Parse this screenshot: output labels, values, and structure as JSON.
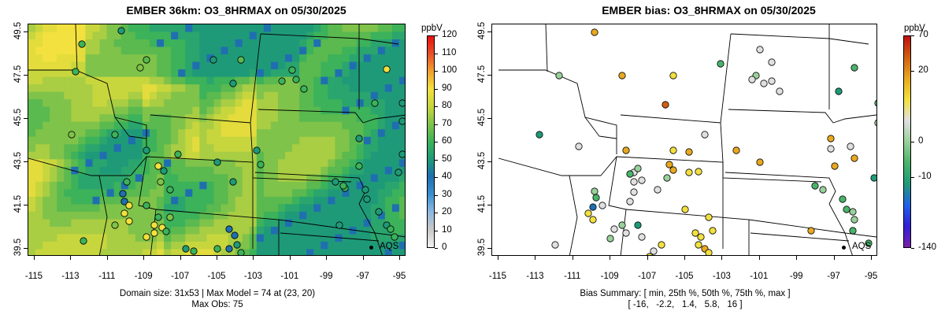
{
  "left_panel": {
    "title": "EMBER 36km: O3_8HRMAX on 05/30/2025",
    "x_ticks": [
      "-115",
      "-113",
      "-111",
      "-109",
      "-107",
      "-105",
      "-103",
      "-101",
      "-99",
      "-97",
      "-95"
    ],
    "y_ticks": [
      "39.5",
      "41.5",
      "43.5",
      "45.5",
      "47.5",
      "49.5"
    ],
    "colorbar_unit": "ppbV",
    "colorbar_ticks": [
      "0",
      "10",
      "20",
      "30",
      "40",
      "50",
      "60",
      "70",
      "80",
      "90",
      "100",
      "110",
      "120"
    ],
    "footer_line1": "Domain size: 31x53 | Max Model = 74 at (23, 20)",
    "footer_line2": "Max Obs: 75",
    "site_label": "AQS"
  },
  "right_panel": {
    "title": "EMBER bias: O3_8HRMAX on 05/30/2025",
    "x_ticks": [
      "-115",
      "-113",
      "-111",
      "-109",
      "-107",
      "-105",
      "-103",
      "-101",
      "-99",
      "-97",
      "-95"
    ],
    "y_ticks": [
      "39.5",
      "41.5",
      "43.5",
      "45.5",
      "47.5",
      "49.5"
    ],
    "colorbar_unit": "ppbV",
    "colorbar_ticks": [
      "70",
      "20",
      "0",
      "-10",
      "-140"
    ],
    "footer_line1": "Bias Summary: [ min, 25th %, 50th %, 75th %, max ]",
    "footer_line2": "[ -16,   -2.2,   1.4,   5.8,   16 ]",
    "site_label": "AQS"
  },
  "colors": {
    "model_scale": [
      "#f2f2f2",
      "#c8c8c8",
      "#8fb8e0",
      "#3a8fd0",
      "#1f6fb0",
      "#1f9a78",
      "#3cb25a",
      "#7fc34a",
      "#c8d63e",
      "#f2e13e",
      "#f0a030",
      "#e8502a",
      "#e81010"
    ],
    "bias_scale": [
      "#7a1fa8",
      "#3020d8",
      "#2060e8",
      "#1f9a78",
      "#4ab46a",
      "#9ad09a",
      "#e0e0e0",
      "#f2e13e",
      "#e8a820",
      "#d06010",
      "#c01010"
    ]
  }
}
